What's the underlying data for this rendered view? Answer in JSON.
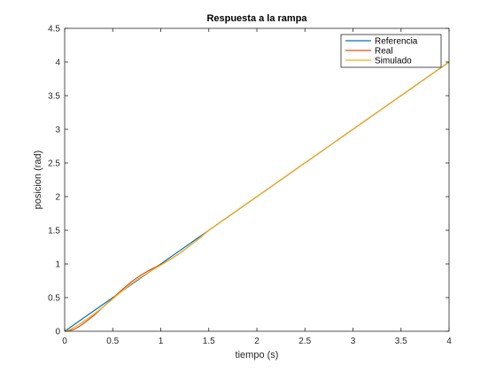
{
  "chart_data": {
    "type": "line",
    "title": "Respuesta a la rampa",
    "xlabel": "tiempo (s)",
    "ylabel": "posicion (rad)",
    "xlim": [
      0,
      4
    ],
    "ylim": [
      0,
      4.5
    ],
    "xticks": [
      0,
      0.5,
      1,
      1.5,
      2,
      2.5,
      3,
      3.5,
      4
    ],
    "yticks": [
      0,
      0.5,
      1,
      1.5,
      2,
      2.5,
      3,
      3.5,
      4,
      4.5
    ],
    "xtick_labels": [
      "0",
      "0.5",
      "1",
      "1.5",
      "2",
      "2.5",
      "3",
      "3.5",
      "4"
    ],
    "ytick_labels": [
      "0",
      "0.5",
      "1",
      "1.5",
      "2",
      "2.5",
      "3",
      "3.5",
      "4",
      "4.5"
    ],
    "grid": false,
    "legend_position": "top-right",
    "series": [
      {
        "name": "Referencia",
        "color": "#0072BD",
        "x": [
          0,
          4
        ],
        "y": [
          0,
          4
        ]
      },
      {
        "name": "Real",
        "color": "#D95319",
        "x": [
          0,
          0.05,
          0.1,
          0.15,
          0.2,
          0.3,
          0.4,
          0.5,
          0.6,
          0.7,
          0.8,
          0.9,
          1.0,
          1.1,
          1.2,
          1.3,
          1.4,
          1.5,
          1.7,
          2.0,
          2.5,
          3.0,
          3.5,
          4.0
        ],
        "y": [
          0,
          0.01,
          0.03,
          0.07,
          0.12,
          0.23,
          0.36,
          0.49,
          0.62,
          0.74,
          0.84,
          0.92,
          0.99,
          1.07,
          1.16,
          1.27,
          1.38,
          1.5,
          1.7,
          2.0,
          2.5,
          3.0,
          3.5,
          4.0
        ]
      },
      {
        "name": "Simulado",
        "color": "#EDB120",
        "x": [
          0,
          0.05,
          0.1,
          0.15,
          0.2,
          0.3,
          0.4,
          0.5,
          0.6,
          0.7,
          0.8,
          0.9,
          1.0,
          1.1,
          1.2,
          1.3,
          1.4,
          1.5,
          1.7,
          2.0,
          2.5,
          3.0,
          3.5,
          4.0
        ],
        "y": [
          0,
          0.02,
          0.06,
          0.1,
          0.15,
          0.25,
          0.36,
          0.48,
          0.6,
          0.71,
          0.81,
          0.9,
          0.98,
          1.07,
          1.16,
          1.27,
          1.38,
          1.5,
          1.7,
          2.0,
          2.5,
          3.0,
          3.5,
          4.0
        ]
      }
    ]
  }
}
